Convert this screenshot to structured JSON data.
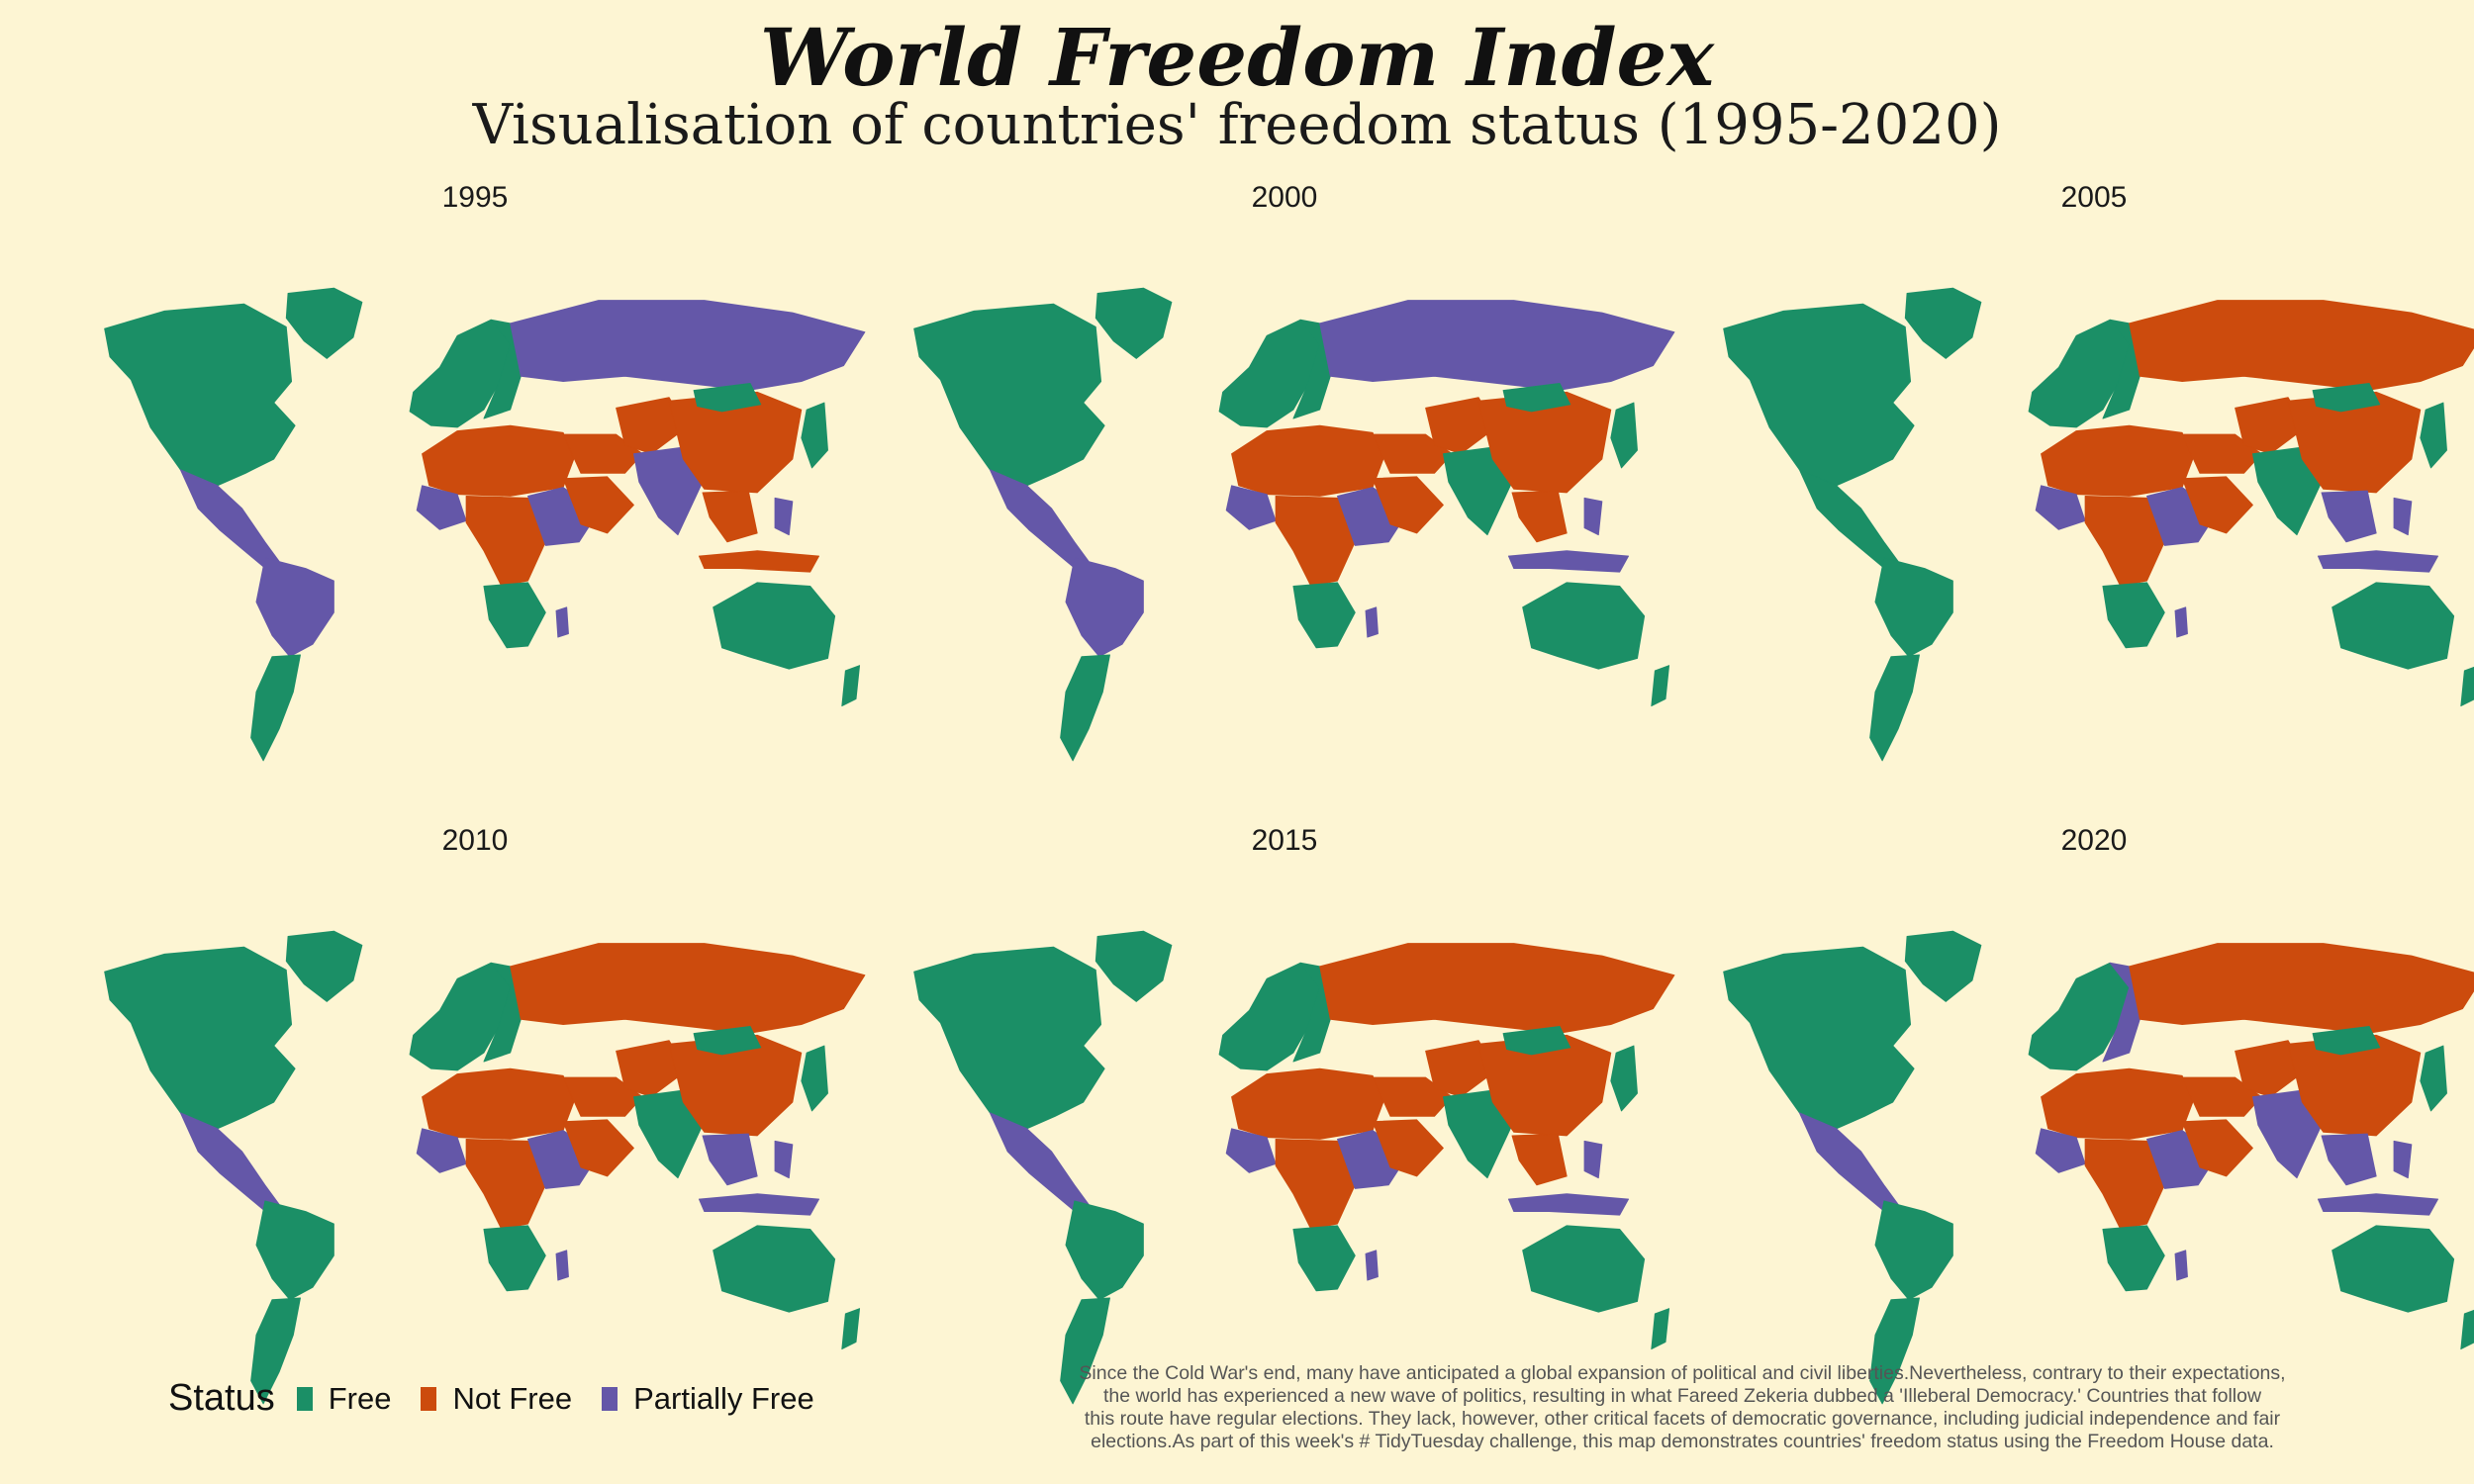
{
  "title": "World Freedom Index",
  "subtitle": "Visualisation of countries' freedom status (1995-2020)",
  "colors": {
    "background": "#fdf5d3",
    "Free": "#1b8f66",
    "Not Free": "#cc4b0d",
    "Partially Free": "#6457a8"
  },
  "chart_data": {
    "type": "choropleth-map-facets",
    "facets": [
      {
        "year": "1995",
        "regions": {
          "north_america": "Free",
          "greenland": "Free",
          "central_america": "Partially Free",
          "south_america": "Partially Free",
          "southern_cone": "Free",
          "western_europe": "Free",
          "eastern_europe": "Free",
          "russia": "Partially Free",
          "north_africa": "Not Free",
          "west_africa": "Partially Free",
          "central_africa": "Not Free",
          "east_africa": "Partially Free",
          "southern_africa": "Free",
          "madagascar": "Partially Free",
          "middle_east": "Not Free",
          "arabia": "Not Free",
          "central_asia": "Not Free",
          "south_asia": "Partially Free",
          "china": "Not Free",
          "mongolia": "Free",
          "southeast_asia": "Not Free",
          "indonesia": "Not Free",
          "japan_korea": "Free",
          "philippines": "Partially Free",
          "australia": "Free",
          "new_zealand": "Free"
        }
      },
      {
        "year": "2000",
        "regions": {
          "north_america": "Free",
          "greenland": "Free",
          "central_america": "Partially Free",
          "south_america": "Partially Free",
          "southern_cone": "Free",
          "western_europe": "Free",
          "eastern_europe": "Free",
          "russia": "Partially Free",
          "north_africa": "Not Free",
          "west_africa": "Partially Free",
          "central_africa": "Not Free",
          "east_africa": "Partially Free",
          "southern_africa": "Free",
          "madagascar": "Partially Free",
          "middle_east": "Not Free",
          "arabia": "Not Free",
          "central_asia": "Not Free",
          "south_asia": "Free",
          "china": "Not Free",
          "mongolia": "Free",
          "southeast_asia": "Not Free",
          "indonesia": "Partially Free",
          "japan_korea": "Free",
          "philippines": "Partially Free",
          "australia": "Free",
          "new_zealand": "Free"
        }
      },
      {
        "year": "2005",
        "regions": {
          "north_america": "Free",
          "greenland": "Free",
          "central_america": "Free",
          "south_america": "Free",
          "southern_cone": "Free",
          "western_europe": "Free",
          "eastern_europe": "Free",
          "russia": "Not Free",
          "north_africa": "Not Free",
          "west_africa": "Partially Free",
          "central_africa": "Not Free",
          "east_africa": "Partially Free",
          "southern_africa": "Free",
          "madagascar": "Partially Free",
          "middle_east": "Not Free",
          "arabia": "Not Free",
          "central_asia": "Not Free",
          "south_asia": "Free",
          "china": "Not Free",
          "mongolia": "Free",
          "southeast_asia": "Partially Free",
          "indonesia": "Partially Free",
          "japan_korea": "Free",
          "philippines": "Partially Free",
          "australia": "Free",
          "new_zealand": "Free"
        }
      },
      {
        "year": "2010",
        "regions": {
          "north_america": "Free",
          "greenland": "Free",
          "central_america": "Partially Free",
          "south_america": "Free",
          "southern_cone": "Free",
          "western_europe": "Free",
          "eastern_europe": "Free",
          "russia": "Not Free",
          "north_africa": "Not Free",
          "west_africa": "Partially Free",
          "central_africa": "Not Free",
          "east_africa": "Partially Free",
          "southern_africa": "Free",
          "madagascar": "Partially Free",
          "middle_east": "Not Free",
          "arabia": "Not Free",
          "central_asia": "Not Free",
          "south_asia": "Free",
          "china": "Not Free",
          "mongolia": "Free",
          "southeast_asia": "Partially Free",
          "indonesia": "Partially Free",
          "japan_korea": "Free",
          "philippines": "Partially Free",
          "australia": "Free",
          "new_zealand": "Free"
        }
      },
      {
        "year": "2015",
        "regions": {
          "north_america": "Free",
          "greenland": "Free",
          "central_america": "Partially Free",
          "south_america": "Free",
          "southern_cone": "Free",
          "western_europe": "Free",
          "eastern_europe": "Free",
          "russia": "Not Free",
          "north_africa": "Not Free",
          "west_africa": "Partially Free",
          "central_africa": "Not Free",
          "east_africa": "Partially Free",
          "southern_africa": "Free",
          "madagascar": "Partially Free",
          "middle_east": "Not Free",
          "arabia": "Not Free",
          "central_asia": "Not Free",
          "south_asia": "Free",
          "china": "Not Free",
          "mongolia": "Free",
          "southeast_asia": "Not Free",
          "indonesia": "Partially Free",
          "japan_korea": "Free",
          "philippines": "Partially Free",
          "australia": "Free",
          "new_zealand": "Free"
        }
      },
      {
        "year": "2020",
        "regions": {
          "north_america": "Free",
          "greenland": "Free",
          "central_america": "Partially Free",
          "south_america": "Free",
          "southern_cone": "Free",
          "western_europe": "Free",
          "eastern_europe": "Partially Free",
          "russia": "Not Free",
          "north_africa": "Not Free",
          "west_africa": "Partially Free",
          "central_africa": "Not Free",
          "east_africa": "Partially Free",
          "southern_africa": "Free",
          "madagascar": "Partially Free",
          "middle_east": "Not Free",
          "arabia": "Not Free",
          "central_asia": "Not Free",
          "south_asia": "Partially Free",
          "china": "Not Free",
          "mongolia": "Free",
          "southeast_asia": "Partially Free",
          "indonesia": "Partially Free",
          "japan_korea": "Free",
          "philippines": "Partially Free",
          "australia": "Free",
          "new_zealand": "Free"
        }
      }
    ],
    "legend": {
      "title": "Status",
      "entries": [
        "Free",
        "Not Free",
        "Partially Free"
      ],
      "placement": "bottom-left"
    }
  },
  "caption": [
    "Since the Cold War's end, many have anticipated a global expansion of political and civil liberties.Nevertheless, contrary to their expectations,",
    "the world has experienced a new wave of politics, resulting in what Fareed Zekeria dubbed a 'Illeberal Democracy.' Countries that follow",
    "this route have regular elections. They lack, however, other critical facets of democratic governance, including judicial independence and fair",
    "elections.As part of this week's # TidyTuesday challenge, this map demonstrates countries' freedom status using the Freedom House data."
  ]
}
